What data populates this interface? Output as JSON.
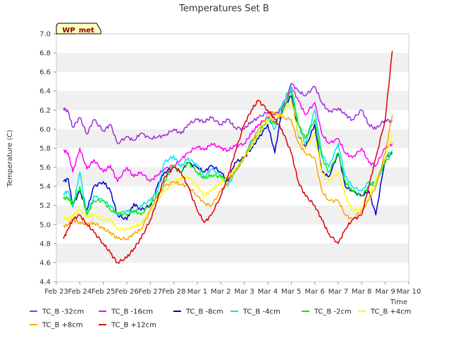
{
  "chart_data": {
    "type": "line",
    "title": "Temperatures Set B",
    "xlabel": "Time",
    "ylabel": "Temperature (C)",
    "badge": "WP_met",
    "ylim": [
      4.4,
      7.0
    ],
    "yticks": [
      "4.4",
      "4.6",
      "4.8",
      "5.0",
      "5.2",
      "5.4",
      "5.6",
      "5.8",
      "6.0",
      "6.2",
      "6.4",
      "6.6",
      "6.8",
      "7.0"
    ],
    "x_tick_labels": [
      "Feb 23",
      "Feb 24",
      "Feb 25",
      "Feb 26",
      "Feb 27",
      "Feb 28",
      "Mar 1",
      "Mar 2",
      "Mar 3",
      "Mar 4",
      "Mar 5",
      "Mar 6",
      "Mar 7",
      "Mar 8",
      "Mar 9",
      "Mar 10"
    ],
    "x_tick_days": [
      0,
      1,
      2,
      3,
      4,
      5,
      6,
      7,
      8,
      9,
      10,
      11,
      12,
      13,
      14,
      15
    ],
    "xlim_days": [
      0,
      15
    ],
    "grid": "horizontal bands",
    "legend_position": "bottom",
    "series": [
      {
        "name": "TC_B -32cm",
        "color": "#9b30d9",
        "x": [
          0.3,
          0.5,
          0.7,
          1.0,
          1.3,
          1.6,
          2.0,
          2.3,
          2.6,
          3.0,
          3.3,
          3.6,
          4.0,
          4.3,
          4.6,
          5.0,
          5.3,
          5.6,
          6.0,
          6.3,
          6.6,
          7.0,
          7.3,
          7.6,
          8.0,
          8.3,
          8.6,
          9.0,
          9.3,
          9.6,
          10.0,
          10.3,
          10.6,
          11.0,
          11.3,
          11.6,
          12.0,
          12.3,
          12.6,
          13.0,
          13.3,
          13.6,
          14.0,
          14.3
        ],
        "y": [
          6.22,
          6.18,
          6.02,
          6.12,
          5.95,
          6.1,
          5.98,
          6.05,
          5.85,
          5.92,
          5.88,
          5.96,
          5.9,
          5.92,
          5.93,
          6.0,
          5.95,
          6.05,
          6.1,
          6.08,
          6.12,
          6.05,
          6.1,
          6.02,
          6.0,
          6.08,
          6.12,
          6.18,
          6.15,
          6.22,
          6.48,
          6.4,
          6.35,
          6.45,
          6.28,
          6.18,
          6.22,
          6.15,
          6.1,
          6.2,
          6.05,
          6.0,
          6.1,
          6.08
        ]
      },
      {
        "name": "TC_B -16cm",
        "color": "#ff00ff",
        "x": [
          0.3,
          0.5,
          0.7,
          1.0,
          1.3,
          1.6,
          2.0,
          2.3,
          2.6,
          3.0,
          3.3,
          3.6,
          4.0,
          4.3,
          4.6,
          5.0,
          5.3,
          5.6,
          6.0,
          6.3,
          6.6,
          7.0,
          7.3,
          7.6,
          8.0,
          8.3,
          8.6,
          9.0,
          9.3,
          9.6,
          10.0,
          10.3,
          10.6,
          11.0,
          11.3,
          11.6,
          12.0,
          12.3,
          12.6,
          13.0,
          13.3,
          13.6,
          14.0,
          14.3
        ],
        "y": [
          5.78,
          5.75,
          5.55,
          5.8,
          5.58,
          5.68,
          5.55,
          5.62,
          5.45,
          5.6,
          5.5,
          5.55,
          5.45,
          5.52,
          5.58,
          5.62,
          5.68,
          5.75,
          5.82,
          5.78,
          5.85,
          5.8,
          5.78,
          5.82,
          5.85,
          5.95,
          6.05,
          6.12,
          6.08,
          6.15,
          6.45,
          6.3,
          6.15,
          6.28,
          5.95,
          5.85,
          5.9,
          5.75,
          5.7,
          5.8,
          5.65,
          5.62,
          5.8,
          5.85
        ]
      },
      {
        "name": "TC_B -8cm",
        "color": "#0000cc",
        "x": [
          0.3,
          0.5,
          0.7,
          1.0,
          1.3,
          1.6,
          2.0,
          2.3,
          2.6,
          3.0,
          3.3,
          3.6,
          4.0,
          4.3,
          4.6,
          5.0,
          5.3,
          5.6,
          6.0,
          6.3,
          6.6,
          7.0,
          7.3,
          7.6,
          8.0,
          8.3,
          8.6,
          9.0,
          9.3,
          9.6,
          10.0,
          10.3,
          10.6,
          11.0,
          11.3,
          11.6,
          12.0,
          12.3,
          12.6,
          13.0,
          13.3,
          13.6,
          14.0,
          14.3
        ],
        "y": [
          5.45,
          5.48,
          5.2,
          5.35,
          5.15,
          5.4,
          5.45,
          5.35,
          5.1,
          5.05,
          5.22,
          5.15,
          5.2,
          5.4,
          5.55,
          5.6,
          5.55,
          5.65,
          5.6,
          5.55,
          5.62,
          5.55,
          5.45,
          5.65,
          5.7,
          5.8,
          5.9,
          6.05,
          5.75,
          6.2,
          6.35,
          5.95,
          5.8,
          6.05,
          5.55,
          5.5,
          5.75,
          5.4,
          5.35,
          5.3,
          5.35,
          5.1,
          5.7,
          5.75
        ]
      },
      {
        "name": "TC_B -4cm",
        "color": "#00e5ee",
        "x": [
          0.3,
          0.5,
          0.7,
          1.0,
          1.3,
          1.6,
          2.0,
          2.3,
          2.6,
          3.0,
          3.3,
          3.6,
          4.0,
          4.3,
          4.6,
          5.0,
          5.3,
          5.6,
          6.0,
          6.3,
          6.6,
          7.0,
          7.3,
          7.6,
          8.0,
          8.3,
          8.6,
          9.0,
          9.3,
          9.6,
          10.0,
          10.3,
          10.6,
          11.0,
          11.3,
          11.6,
          12.0,
          12.3,
          12.6,
          13.0,
          13.3,
          13.6,
          14.0,
          14.3
        ],
        "y": [
          5.32,
          5.35,
          5.18,
          5.55,
          5.1,
          5.3,
          5.25,
          5.2,
          5.1,
          5.15,
          5.12,
          5.2,
          5.25,
          5.35,
          5.65,
          5.72,
          5.6,
          5.7,
          5.62,
          5.5,
          5.58,
          5.52,
          5.4,
          5.55,
          5.7,
          5.88,
          5.95,
          6.12,
          6.0,
          6.25,
          6.45,
          6.05,
          5.85,
          6.2,
          5.75,
          5.6,
          5.85,
          5.5,
          5.4,
          5.35,
          5.45,
          5.4,
          5.7,
          5.78
        ]
      },
      {
        "name": "TC_B -2cm",
        "color": "#00ee00",
        "x": [
          0.3,
          0.5,
          0.7,
          1.0,
          1.3,
          1.6,
          2.0,
          2.3,
          2.6,
          3.0,
          3.3,
          3.6,
          4.0,
          4.3,
          4.6,
          5.0,
          5.3,
          5.6,
          6.0,
          6.3,
          6.6,
          7.0,
          7.3,
          7.6,
          8.0,
          8.3,
          8.6,
          9.0,
          9.3,
          9.6,
          10.0,
          10.3,
          10.6,
          11.0,
          11.3,
          11.6,
          12.0,
          12.3,
          12.6,
          13.0,
          13.3,
          13.6,
          14.0,
          14.3
        ],
        "y": [
          5.27,
          5.28,
          5.2,
          5.4,
          5.1,
          5.25,
          5.25,
          5.15,
          5.12,
          5.1,
          5.15,
          5.1,
          5.22,
          5.3,
          5.45,
          5.62,
          5.55,
          5.65,
          5.55,
          5.48,
          5.52,
          5.5,
          5.45,
          5.55,
          5.7,
          5.85,
          5.95,
          6.1,
          6.05,
          6.18,
          6.4,
          6.05,
          5.9,
          6.1,
          5.7,
          5.55,
          5.75,
          5.45,
          5.35,
          5.3,
          5.4,
          5.45,
          5.65,
          5.75
        ]
      },
      {
        "name": "TC_B +4cm",
        "color": "#ffff00",
        "x": [
          0.3,
          0.5,
          0.7,
          1.0,
          1.3,
          1.6,
          2.0,
          2.3,
          2.6,
          3.0,
          3.3,
          3.6,
          4.0,
          4.3,
          4.6,
          5.0,
          5.3,
          5.6,
          6.0,
          6.3,
          6.6,
          7.0,
          7.3,
          7.6,
          8.0,
          8.3,
          8.6,
          9.0,
          9.3,
          9.6,
          10.0,
          10.3,
          10.6,
          11.0,
          11.3,
          11.6,
          12.0,
          12.3,
          12.6,
          13.0,
          13.3,
          13.6,
          14.0,
          14.3
        ],
        "y": [
          5.08,
          5.05,
          5.1,
          5.15,
          5.08,
          5.1,
          5.05,
          5.05,
          4.95,
          4.95,
          4.98,
          5.0,
          5.15,
          5.25,
          5.35,
          5.45,
          5.48,
          5.5,
          5.4,
          5.3,
          5.35,
          5.45,
          5.5,
          5.58,
          5.7,
          5.82,
          5.95,
          6.1,
          6.12,
          6.15,
          6.3,
          5.95,
          5.8,
          5.95,
          5.55,
          5.45,
          5.55,
          5.3,
          5.15,
          5.15,
          5.3,
          5.45,
          5.7,
          5.95
        ]
      },
      {
        "name": "TC_B +8cm",
        "color": "#ffa500",
        "x": [
          0.3,
          0.5,
          0.7,
          1.0,
          1.3,
          1.6,
          2.0,
          2.3,
          2.6,
          3.0,
          3.3,
          3.6,
          4.0,
          4.3,
          4.6,
          5.0,
          5.3,
          5.6,
          6.0,
          6.3,
          6.6,
          7.0,
          7.3,
          7.6,
          8.0,
          8.3,
          8.6,
          9.0,
          9.3,
          9.6,
          10.0,
          10.3,
          10.6,
          11.0,
          11.3,
          11.6,
          12.0,
          12.3,
          12.6,
          13.0,
          13.3,
          13.6,
          14.0,
          14.3
        ],
        "y": [
          4.98,
          5.0,
          5.05,
          5.02,
          5.0,
          5.02,
          4.95,
          4.92,
          4.85,
          4.85,
          4.9,
          4.95,
          5.15,
          5.3,
          5.4,
          5.45,
          5.42,
          5.4,
          5.3,
          5.22,
          5.2,
          5.35,
          5.45,
          5.55,
          5.7,
          5.85,
          6.0,
          6.15,
          6.18,
          6.12,
          6.1,
          5.85,
          5.75,
          5.7,
          5.35,
          5.25,
          5.25,
          5.1,
          5.05,
          5.15,
          5.25,
          5.4,
          5.75,
          6.15
        ]
      },
      {
        "name": "TC_B +12cm",
        "color": "#dd0000",
        "x": [
          0.3,
          0.5,
          0.7,
          1.0,
          1.3,
          1.6,
          2.0,
          2.3,
          2.6,
          3.0,
          3.3,
          3.6,
          4.0,
          4.3,
          4.6,
          5.0,
          5.3,
          5.6,
          6.0,
          6.3,
          6.6,
          7.0,
          7.3,
          7.6,
          8.0,
          8.3,
          8.6,
          9.0,
          9.3,
          9.6,
          10.0,
          10.3,
          10.6,
          11.0,
          11.3,
          11.6,
          12.0,
          12.3,
          12.6,
          13.0,
          13.3,
          13.6,
          14.0,
          14.3
        ],
        "y": [
          4.85,
          4.95,
          5.05,
          5.1,
          5.0,
          4.92,
          4.8,
          4.7,
          4.6,
          4.65,
          4.75,
          4.85,
          5.05,
          5.25,
          5.5,
          5.6,
          5.55,
          5.4,
          5.15,
          5.02,
          5.1,
          5.3,
          5.5,
          5.75,
          6.05,
          6.2,
          6.3,
          6.2,
          6.1,
          6.0,
          5.75,
          5.45,
          5.3,
          5.2,
          5.05,
          4.9,
          4.8,
          4.95,
          5.05,
          5.1,
          5.4,
          5.7,
          6.1,
          6.82
        ]
      }
    ]
  }
}
